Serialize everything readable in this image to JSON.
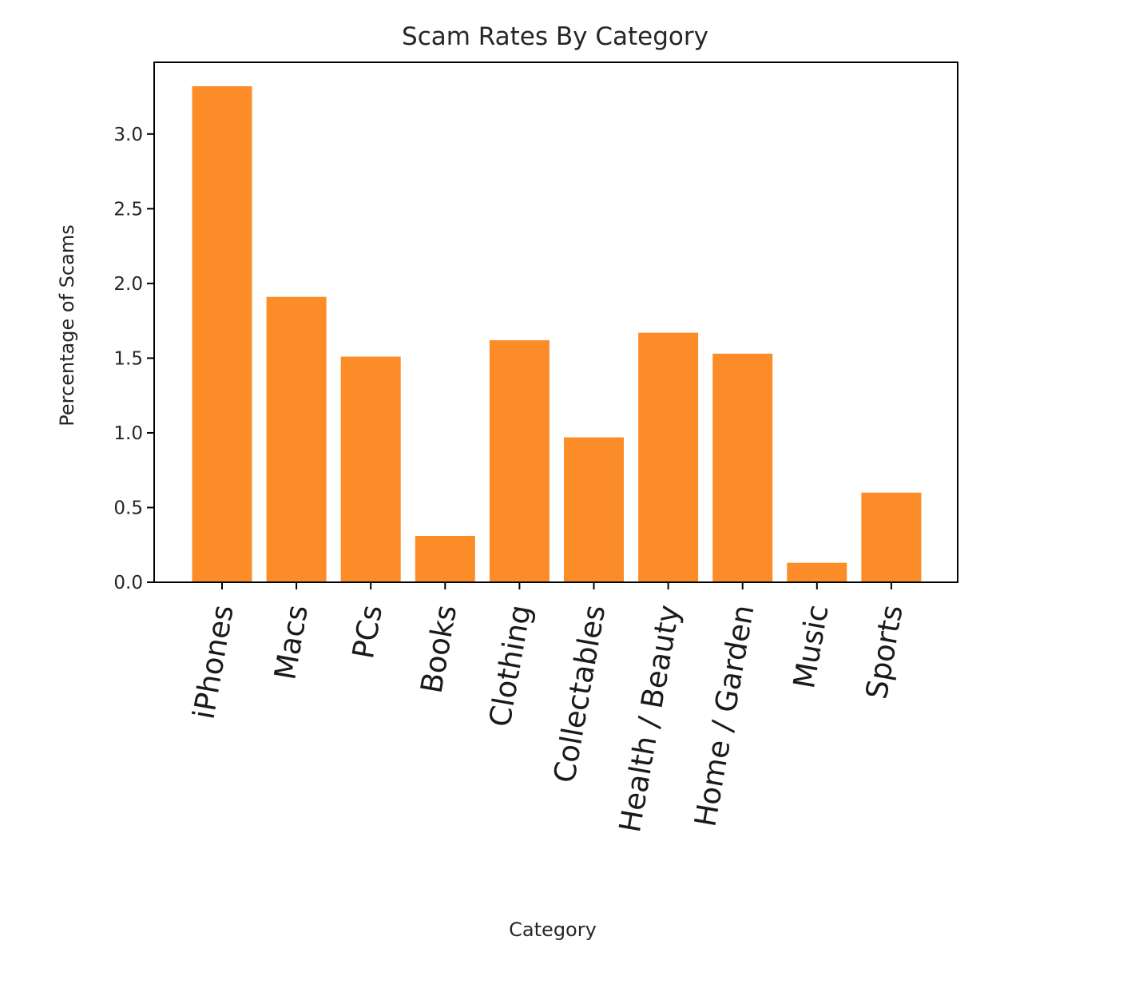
{
  "chart_data": {
    "type": "bar",
    "title": "Scam Rates By Category",
    "xlabel": "Category",
    "ylabel": "Percentage of Scams",
    "categories": [
      "iPhones",
      "Macs",
      "PCs",
      "Books",
      "Clothing",
      "Collectables",
      "Health / Beauty",
      "Home / Garden",
      "Music",
      "Sports"
    ],
    "values": [
      3.32,
      1.91,
      1.51,
      0.31,
      1.62,
      0.97,
      1.67,
      1.53,
      0.13,
      0.6
    ],
    "yticks": [
      0.0,
      0.5,
      1.0,
      1.5,
      2.0,
      2.5,
      3.0
    ],
    "ytick_labels": [
      "0.0",
      "0.5",
      "1.0",
      "1.5",
      "2.0",
      "2.5",
      "3.0"
    ],
    "ylim": [
      0,
      3.48
    ],
    "bar_color": "#fb8c28",
    "grid": false,
    "legend": "none"
  }
}
